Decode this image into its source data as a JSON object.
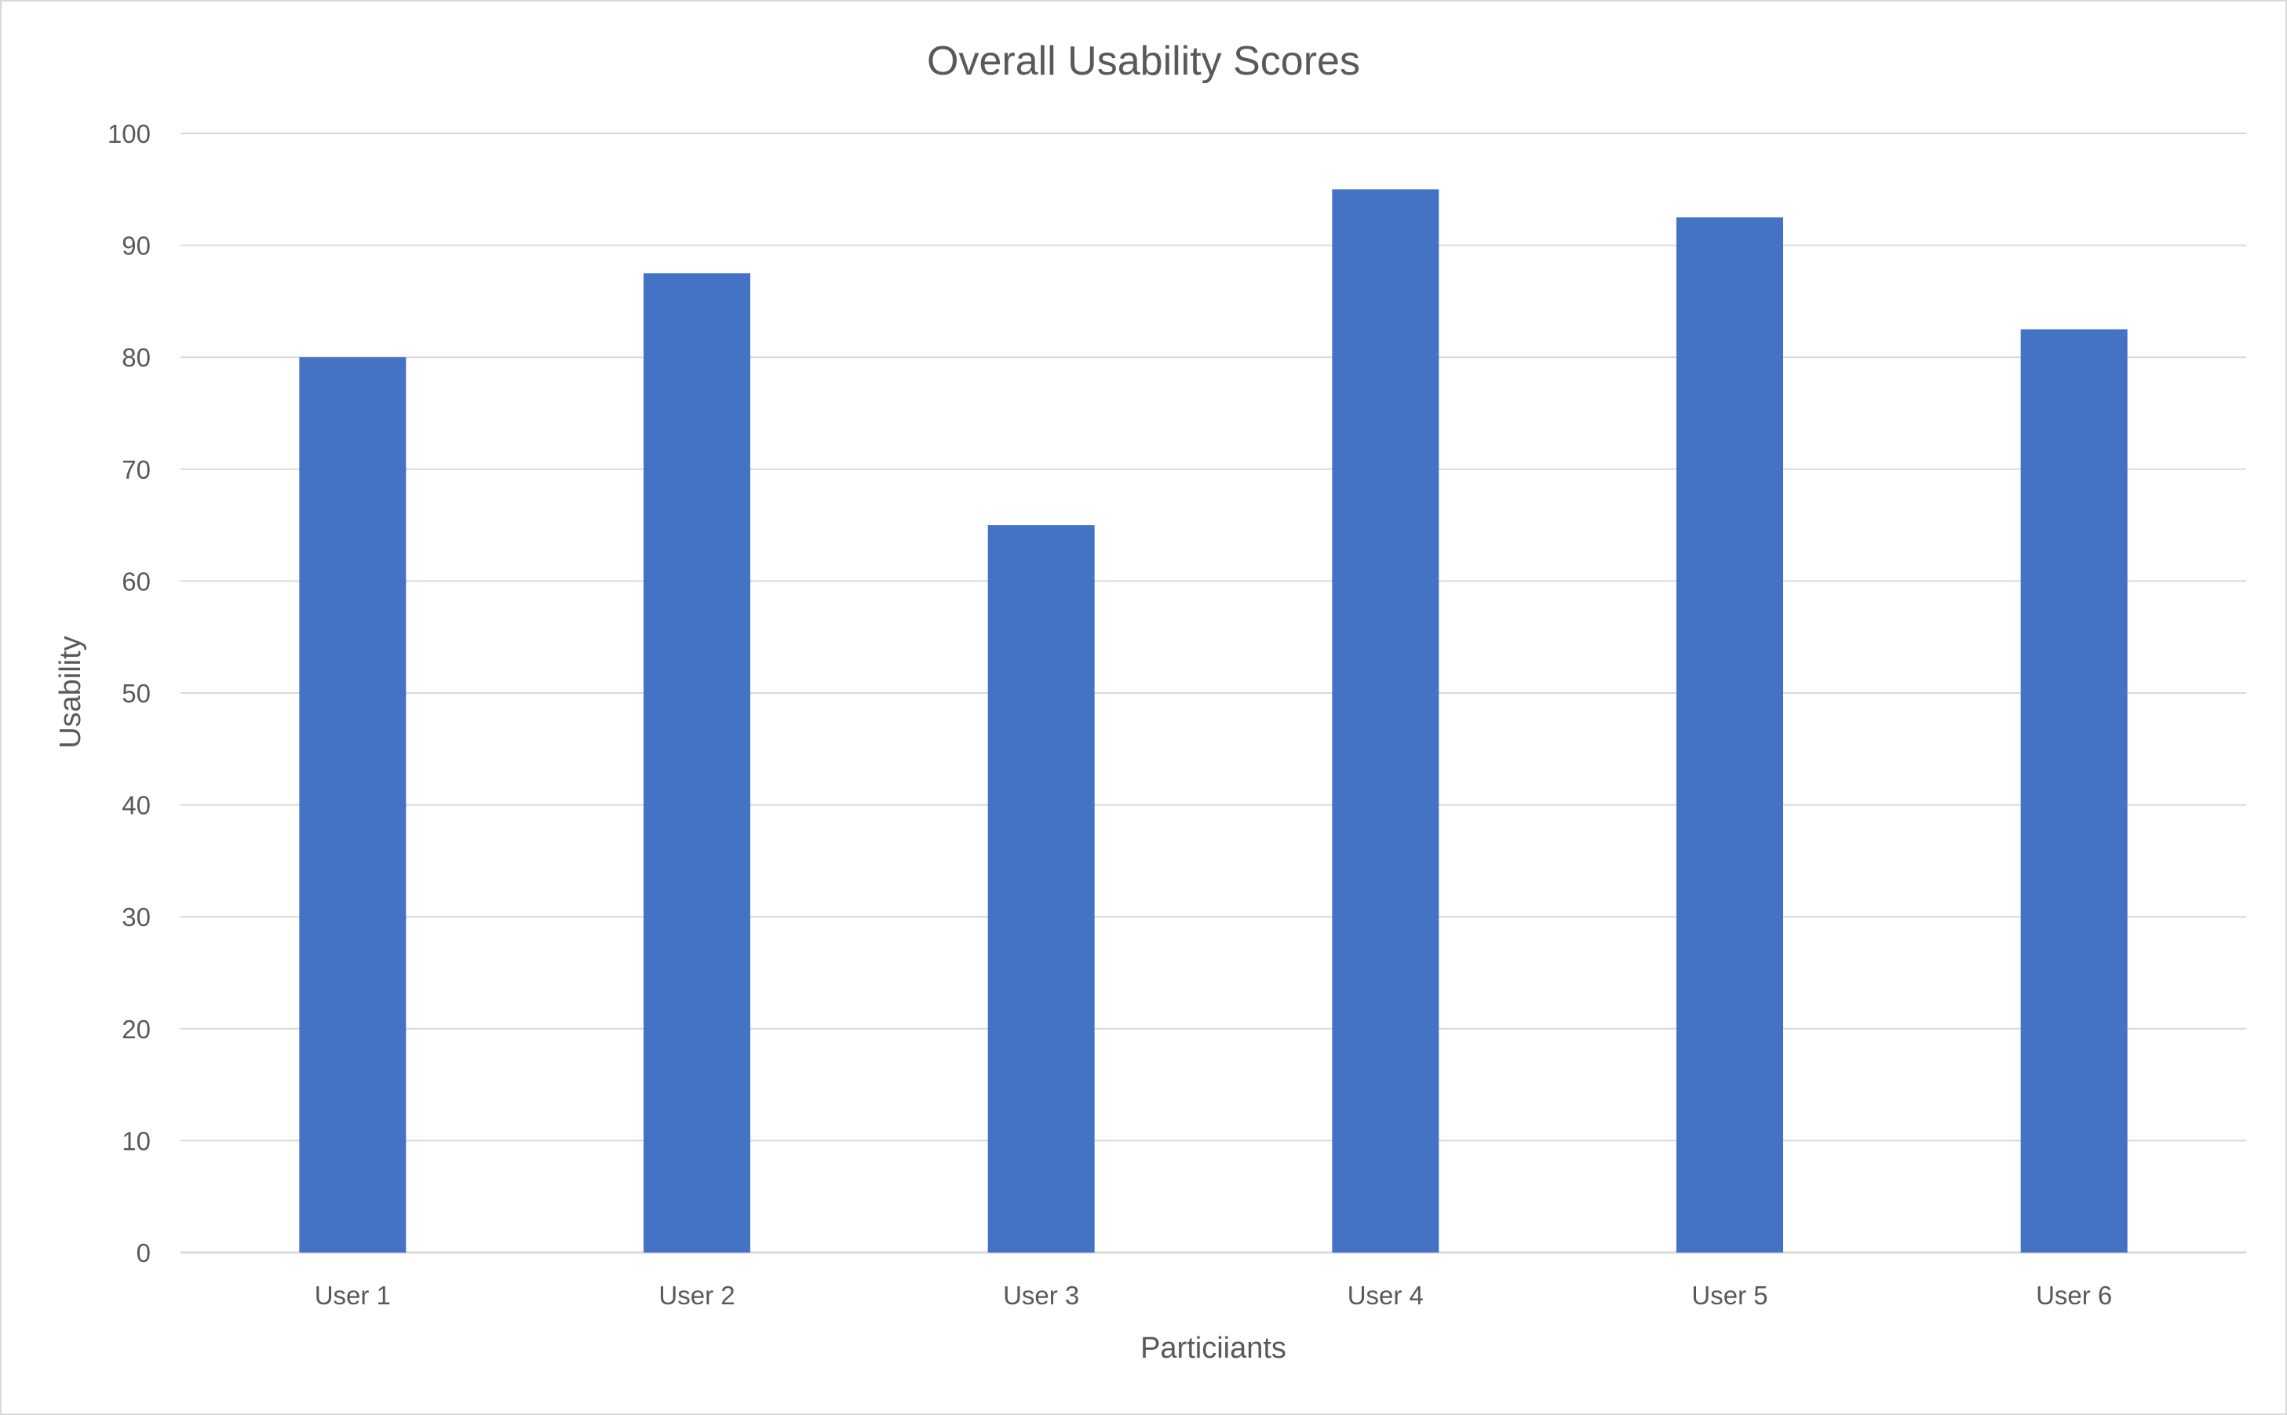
{
  "chart_data": {
    "type": "bar",
    "title": "Overall Usability Scores",
    "xlabel": "Particiiants",
    "ylabel": "Usability",
    "categories": [
      "User 1",
      "User 2",
      "User 3",
      "User 4",
      "User 5",
      "User 6"
    ],
    "values": [
      80,
      87.5,
      65,
      95,
      92.5,
      82.5
    ],
    "ylim": [
      0,
      100
    ],
    "yticks": [
      "0",
      "10",
      "20",
      "30",
      "40",
      "50",
      "60",
      "70",
      "80",
      "90",
      "100"
    ],
    "grid": true,
    "legend": "none",
    "bar_color": "#4472C4"
  }
}
